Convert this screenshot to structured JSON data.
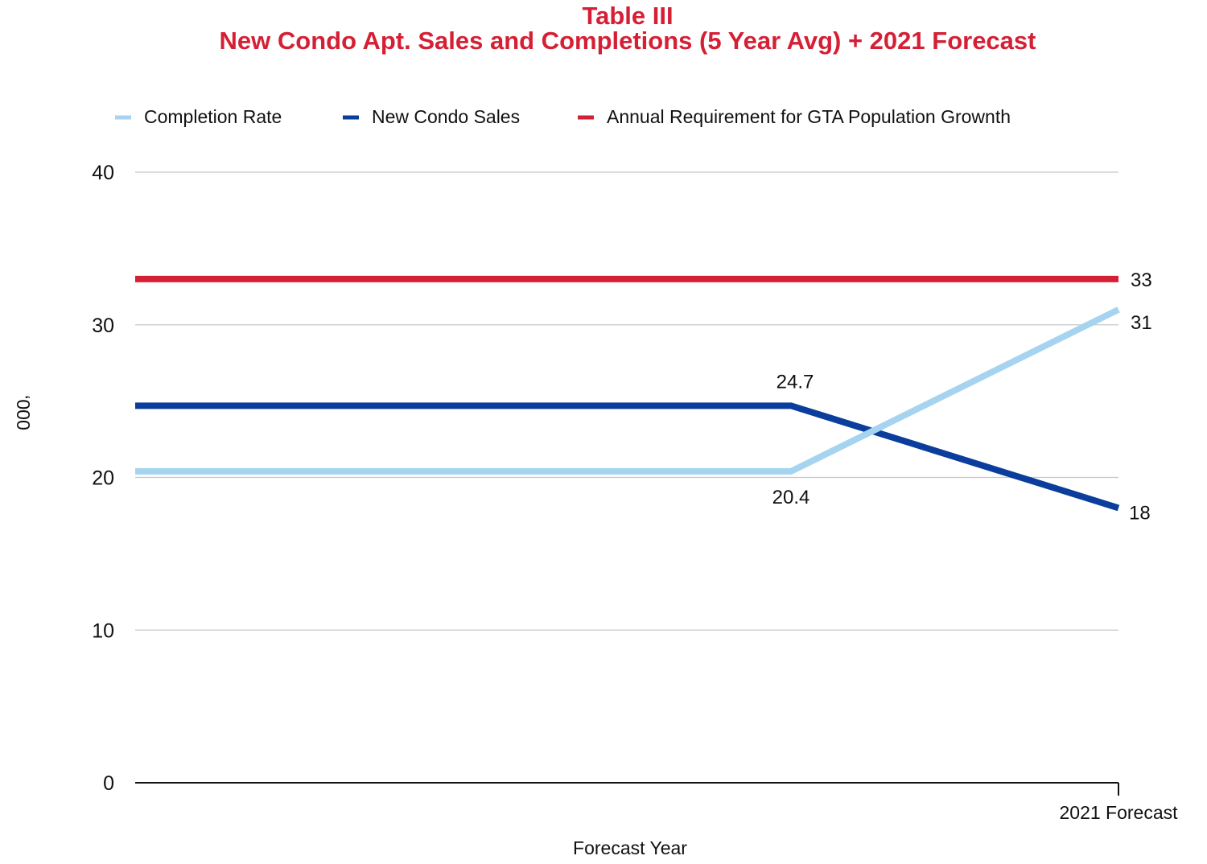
{
  "chart_data": {
    "type": "line",
    "title": "Table III",
    "subtitle": "New Condo Apt. Sales and Completions (5 Year Avg) + 2021 Forecast",
    "xlabel": "Forecast Year",
    "ylabel": "‘000",
    "categories": [
      "",
      "",
      "2021 Forecast"
    ],
    "ylim": [
      0,
      40
    ],
    "yticks": [
      0,
      10,
      20,
      30,
      40
    ],
    "grid": true,
    "legend_position": "top",
    "series": [
      {
        "name": "Completion Rate",
        "color": "#a6d4f0",
        "values": [
          20.4,
          20.4,
          31
        ],
        "labels": [
          "",
          "20.4",
          "31"
        ]
      },
      {
        "name": "New Condo Sales",
        "color": "#0b3d9c",
        "values": [
          24.7,
          24.7,
          18
        ],
        "labels": [
          "",
          "24.7",
          "18"
        ]
      },
      {
        "name": "Annual Requirement for GTA Population Grownth",
        "color": "#d51f35",
        "values": [
          33,
          33,
          33
        ],
        "labels": [
          "",
          "",
          "33"
        ]
      }
    ]
  }
}
